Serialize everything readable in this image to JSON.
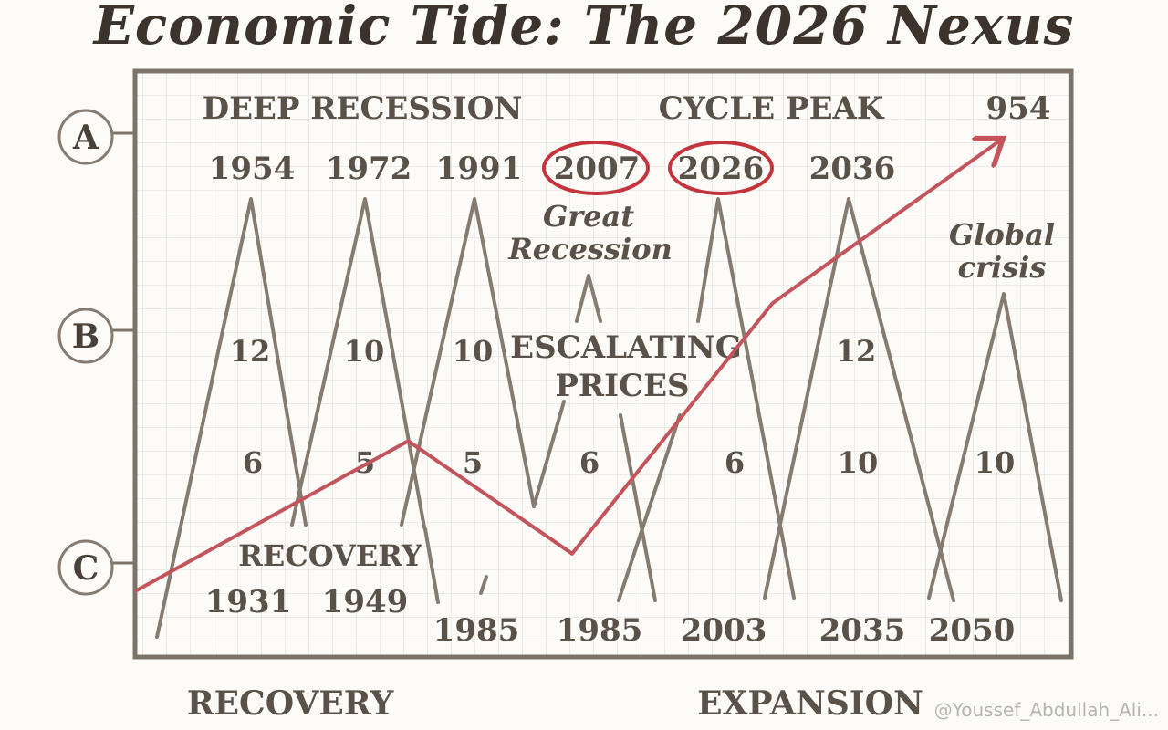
{
  "title": "Economic Tide: The 2026 Nexus",
  "side_labels": [
    "A",
    "B",
    "C"
  ],
  "header_labels": {
    "left": "DEEP RECESSION",
    "right": "CYCLE PEAK",
    "corner": "954"
  },
  "top_years": [
    "1954",
    "1972",
    "1991",
    "2007",
    "2026",
    "2036"
  ],
  "circled_years": [
    "2007",
    "2026"
  ],
  "annotations": {
    "great_recession": [
      "Great",
      "Recession"
    ],
    "global_crisis": [
      "Global",
      "crisis"
    ],
    "escalating_prices": [
      "ESCALATING",
      "PRICES"
    ],
    "recovery_inner": "RECOVERY"
  },
  "upper_numbers": [
    "12",
    "10",
    "10",
    "12"
  ],
  "lower_numbers": [
    "6",
    "5",
    "5",
    "6",
    "6",
    "10",
    "10"
  ],
  "bottom_years_row1": [
    "1931",
    "1949"
  ],
  "bottom_years_row2": [
    "1985",
    "1985",
    "2003",
    "2035",
    "2050"
  ],
  "footer_labels": {
    "left": "RECOVERY",
    "right": "EXPANSION"
  },
  "watermark": "@Youssef_Abdullah_Ali...",
  "colors": {
    "trend": "#c4545c",
    "lines": "#857b70",
    "frame": "#7d7468",
    "circle": "#c4343c",
    "grid": "#e6e6e6"
  },
  "trend_series": [
    {
      "x": 0,
      "y": 0
    },
    {
      "x": 3,
      "y": 1.2
    },
    {
      "x": 4.8,
      "y": 0.3
    },
    {
      "x": 7,
      "y": 2.3
    },
    {
      "x": 9.5,
      "y": 3.6
    }
  ]
}
